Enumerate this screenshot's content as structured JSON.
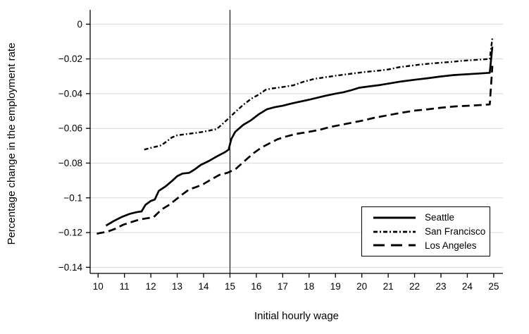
{
  "colors": {
    "line": "#000000",
    "grid": "#d9d9d9",
    "axis": "#000000",
    "text": "#000000",
    "background": "#ffffff"
  },
  "chart_data": {
    "type": "line",
    "title": "",
    "xlabel": "Initial hourly wage",
    "ylabel": "Percentage change in the employment rate",
    "xlim": [
      9.7,
      25.35
    ],
    "ylim": [
      -0.1435,
      0.0058
    ],
    "x_ticks": [
      10,
      11,
      12,
      13,
      14,
      15,
      16,
      17,
      18,
      19,
      20,
      21,
      22,
      23,
      24,
      25
    ],
    "y_ticks": [
      0,
      -0.02,
      -0.04,
      -0.06,
      -0.08,
      -0.1,
      -0.12,
      -0.14
    ],
    "y_tick_labels": [
      "0",
      "−0.02",
      "−0.04",
      "−0.06",
      "−0.08",
      "−0.1",
      "−0.12",
      "−0.14"
    ],
    "grid": "horizontal",
    "reference_line_x": 15,
    "legend_position": "bottom-right",
    "series": [
      {
        "name": "Seattle",
        "style": "solid",
        "points": [
          [
            10.3,
            -0.116
          ],
          [
            10.6,
            -0.1133
          ],
          [
            10.9,
            -0.111
          ],
          [
            11.2,
            -0.1092
          ],
          [
            11.45,
            -0.1083
          ],
          [
            11.65,
            -0.1078
          ],
          [
            11.8,
            -0.104
          ],
          [
            12.0,
            -0.1018
          ],
          [
            12.15,
            -0.101
          ],
          [
            12.3,
            -0.096
          ],
          [
            12.55,
            -0.0935
          ],
          [
            12.8,
            -0.0903
          ],
          [
            13.0,
            -0.0875
          ],
          [
            13.2,
            -0.086
          ],
          [
            13.45,
            -0.0856
          ],
          [
            13.65,
            -0.0838
          ],
          [
            13.9,
            -0.081
          ],
          [
            14.2,
            -0.0788
          ],
          [
            14.5,
            -0.0762
          ],
          [
            14.8,
            -0.0738
          ],
          [
            14.95,
            -0.0722
          ],
          [
            15.05,
            -0.0662
          ],
          [
            15.2,
            -0.062
          ],
          [
            15.5,
            -0.058
          ],
          [
            15.8,
            -0.0553
          ],
          [
            16.1,
            -0.0518
          ],
          [
            16.4,
            -0.049
          ],
          [
            16.7,
            -0.0478
          ],
          [
            17.0,
            -0.047
          ],
          [
            17.3,
            -0.0458
          ],
          [
            17.6,
            -0.0448
          ],
          [
            18.0,
            -0.0435
          ],
          [
            18.3,
            -0.0424
          ],
          [
            18.6,
            -0.0413
          ],
          [
            19.0,
            -0.04
          ],
          [
            19.3,
            -0.0392
          ],
          [
            19.6,
            -0.038
          ],
          [
            19.9,
            -0.0366
          ],
          [
            20.3,
            -0.0358
          ],
          [
            20.7,
            -0.035
          ],
          [
            21.1,
            -0.034
          ],
          [
            21.5,
            -0.033
          ],
          [
            22.0,
            -0.032
          ],
          [
            22.5,
            -0.0311
          ],
          [
            23.0,
            -0.0301
          ],
          [
            23.5,
            -0.0293
          ],
          [
            24.0,
            -0.0288
          ],
          [
            24.45,
            -0.0284
          ],
          [
            24.85,
            -0.028
          ],
          [
            24.95,
            -0.013
          ]
        ]
      },
      {
        "name": "San Francisco",
        "style": "dash-dot",
        "points": [
          [
            11.75,
            -0.0722
          ],
          [
            12.0,
            -0.0712
          ],
          [
            12.2,
            -0.0705
          ],
          [
            12.4,
            -0.0697
          ],
          [
            12.6,
            -0.0675
          ],
          [
            12.8,
            -0.0652
          ],
          [
            13.0,
            -0.064
          ],
          [
            13.3,
            -0.0634
          ],
          [
            13.6,
            -0.0628
          ],
          [
            13.9,
            -0.0622
          ],
          [
            14.2,
            -0.0613
          ],
          [
            14.5,
            -0.0604
          ],
          [
            14.75,
            -0.057
          ],
          [
            15.0,
            -0.0535
          ],
          [
            15.2,
            -0.0506
          ],
          [
            15.5,
            -0.0465
          ],
          [
            15.8,
            -0.043
          ],
          [
            16.1,
            -0.0405
          ],
          [
            16.35,
            -0.0378
          ],
          [
            16.6,
            -0.037
          ],
          [
            17.0,
            -0.0362
          ],
          [
            17.4,
            -0.0352
          ],
          [
            17.8,
            -0.0331
          ],
          [
            18.2,
            -0.0315
          ],
          [
            18.6,
            -0.0306
          ],
          [
            19.0,
            -0.0297
          ],
          [
            19.4,
            -0.0289
          ],
          [
            19.8,
            -0.0281
          ],
          [
            20.2,
            -0.0274
          ],
          [
            20.6,
            -0.0268
          ],
          [
            21.0,
            -0.0261
          ],
          [
            21.4,
            -0.0248
          ],
          [
            21.8,
            -0.024
          ],
          [
            22.2,
            -0.0233
          ],
          [
            22.6,
            -0.0227
          ],
          [
            23.0,
            -0.0222
          ],
          [
            23.4,
            -0.0217
          ],
          [
            23.8,
            -0.0211
          ],
          [
            24.2,
            -0.0207
          ],
          [
            24.6,
            -0.0203
          ],
          [
            24.85,
            -0.02
          ],
          [
            24.95,
            -0.008
          ]
        ]
      },
      {
        "name": "Los Angeles",
        "style": "long-dash",
        "points": [
          [
            9.95,
            -0.1206
          ],
          [
            10.35,
            -0.1195
          ],
          [
            10.65,
            -0.1178
          ],
          [
            10.95,
            -0.1155
          ],
          [
            11.25,
            -0.114
          ],
          [
            11.55,
            -0.1126
          ],
          [
            11.8,
            -0.1119
          ],
          [
            12.1,
            -0.1112
          ],
          [
            12.4,
            -0.1068
          ],
          [
            12.7,
            -0.104
          ],
          [
            12.95,
            -0.101
          ],
          [
            13.2,
            -0.098
          ],
          [
            13.45,
            -0.0952
          ],
          [
            13.7,
            -0.0939
          ],
          [
            14.0,
            -0.092
          ],
          [
            14.3,
            -0.0893
          ],
          [
            14.6,
            -0.0868
          ],
          [
            14.9,
            -0.0856
          ],
          [
            15.2,
            -0.0836
          ],
          [
            15.6,
            -0.0782
          ],
          [
            15.9,
            -0.0742
          ],
          [
            16.2,
            -0.071
          ],
          [
            16.5,
            -0.0686
          ],
          [
            16.8,
            -0.0663
          ],
          [
            17.1,
            -0.0648
          ],
          [
            17.5,
            -0.0632
          ],
          [
            18.0,
            -0.062
          ],
          [
            18.4,
            -0.0608
          ],
          [
            18.8,
            -0.0592
          ],
          [
            19.2,
            -0.058
          ],
          [
            19.6,
            -0.0568
          ],
          [
            20.0,
            -0.0556
          ],
          [
            20.5,
            -0.0538
          ],
          [
            21.0,
            -0.0524
          ],
          [
            21.5,
            -0.051
          ],
          [
            22.0,
            -0.0498
          ],
          [
            22.5,
            -0.049
          ],
          [
            23.0,
            -0.0481
          ],
          [
            23.5,
            -0.0474
          ],
          [
            24.0,
            -0.047
          ],
          [
            24.45,
            -0.0466
          ],
          [
            24.85,
            -0.0462
          ],
          [
            24.95,
            -0.024
          ]
        ]
      }
    ]
  }
}
